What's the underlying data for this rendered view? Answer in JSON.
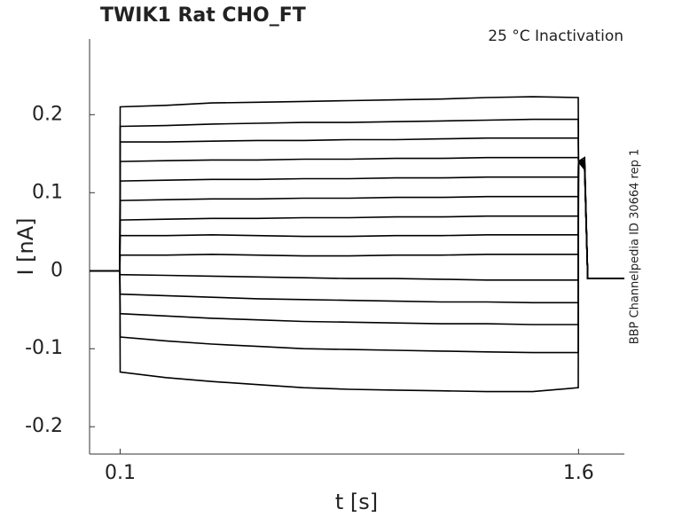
{
  "chart_data": {
    "type": "line",
    "title": "TWIK1  Rat  CHO_FT",
    "subtitle": "25 °C  Inactivation",
    "side_note": "BBP Channelpedia ID 30664 rep 1",
    "xlabel": "t [s]",
    "ylabel": "I [nA]",
    "xlim": [
      0,
      1.75
    ],
    "ylim": [
      -0.235,
      0.297
    ],
    "xticks": [
      0.1,
      1.6
    ],
    "yticks": [
      -0.2,
      -0.1,
      0,
      0.1,
      0.2
    ],
    "color": "#000000",
    "x": [
      0,
      0.099,
      0.1,
      0.25,
      0.4,
      0.55,
      0.7,
      0.85,
      1.0,
      1.15,
      1.3,
      1.45,
      1.599,
      1.6,
      1.62,
      1.63,
      1.75
    ],
    "series": [
      {
        "values": [
          0,
          0,
          0.21,
          0.212,
          0.215,
          0.216,
          0.217,
          0.218,
          0.219,
          0.22,
          0.222,
          0.223,
          0.222,
          0.14,
          0.145,
          -0.01,
          -0.01
        ]
      },
      {
        "values": [
          0,
          0,
          0.185,
          0.186,
          0.188,
          0.189,
          0.19,
          0.19,
          0.191,
          0.192,
          0.193,
          0.194,
          0.194,
          0.14,
          0.142,
          -0.01,
          -0.01
        ]
      },
      {
        "values": [
          0,
          0,
          0.165,
          0.165,
          0.166,
          0.167,
          0.167,
          0.168,
          0.168,
          0.169,
          0.17,
          0.17,
          0.17,
          0.14,
          0.14,
          -0.01,
          -0.01
        ]
      },
      {
        "values": [
          0,
          0,
          0.14,
          0.141,
          0.142,
          0.142,
          0.143,
          0.143,
          0.144,
          0.144,
          0.145,
          0.145,
          0.145,
          0.14,
          0.138,
          -0.01,
          -0.01
        ]
      },
      {
        "values": [
          0,
          0,
          0.115,
          0.116,
          0.117,
          0.117,
          0.118,
          0.118,
          0.119,
          0.119,
          0.12,
          0.12,
          0.12,
          0.14,
          0.137,
          -0.01,
          -0.01
        ]
      },
      {
        "values": [
          0,
          0,
          0.09,
          0.091,
          0.092,
          0.092,
          0.093,
          0.093,
          0.094,
          0.094,
          0.095,
          0.095,
          0.095,
          0.14,
          0.135,
          -0.01,
          -0.01
        ]
      },
      {
        "values": [
          0,
          0,
          0.065,
          0.066,
          0.067,
          0.067,
          0.068,
          0.068,
          0.069,
          0.069,
          0.07,
          0.07,
          0.07,
          0.14,
          0.134,
          -0.01,
          -0.01
        ]
      },
      {
        "values": [
          0,
          0,
          0.045,
          0.045,
          0.046,
          0.045,
          0.044,
          0.044,
          0.045,
          0.045,
          0.046,
          0.046,
          0.046,
          0.14,
          0.133,
          -0.01,
          -0.01
        ]
      },
      {
        "values": [
          0,
          0,
          0.02,
          0.02,
          0.021,
          0.02,
          0.019,
          0.019,
          0.02,
          0.02,
          0.021,
          0.021,
          0.021,
          0.14,
          0.132,
          -0.01,
          -0.01
        ]
      },
      {
        "values": [
          0,
          0,
          -0.005,
          -0.006,
          -0.007,
          -0.008,
          -0.009,
          -0.01,
          -0.01,
          -0.011,
          -0.012,
          -0.012,
          -0.012,
          0.14,
          0.131,
          -0.01,
          -0.01
        ]
      },
      {
        "values": [
          0,
          0,
          -0.03,
          -0.032,
          -0.034,
          -0.036,
          -0.037,
          -0.038,
          -0.039,
          -0.04,
          -0.04,
          -0.041,
          -0.041,
          0.14,
          0.13,
          -0.01,
          -0.01
        ]
      },
      {
        "values": [
          0,
          0,
          -0.055,
          -0.058,
          -0.061,
          -0.063,
          -0.065,
          -0.066,
          -0.067,
          -0.068,
          -0.068,
          -0.069,
          -0.069,
          0.14,
          0.13,
          -0.01,
          -0.01
        ]
      },
      {
        "values": [
          0,
          0,
          -0.085,
          -0.09,
          -0.094,
          -0.097,
          -0.1,
          -0.101,
          -0.102,
          -0.103,
          -0.104,
          -0.105,
          -0.105,
          0.14,
          0.13,
          -0.01,
          -0.01
        ]
      },
      {
        "values": [
          0,
          0,
          -0.13,
          -0.137,
          -0.142,
          -0.146,
          -0.15,
          -0.152,
          -0.153,
          -0.154,
          -0.155,
          -0.155,
          -0.15,
          0.14,
          0.13,
          -0.01,
          -0.01
        ]
      }
    ]
  }
}
